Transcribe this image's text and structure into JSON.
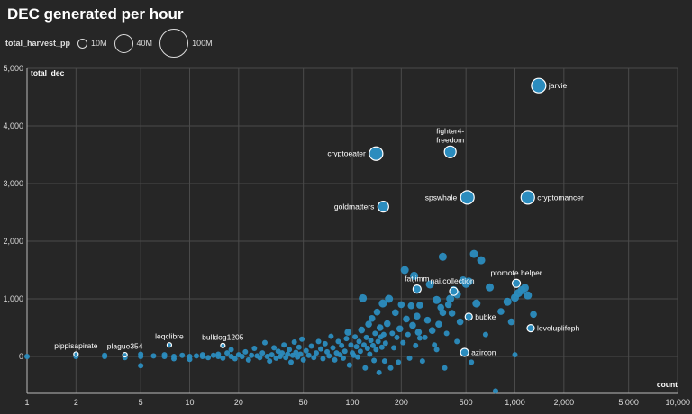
{
  "title": "DEC generated per hour",
  "legend": {
    "size_title": "total_harvest_pp",
    "items": [
      {
        "label": "10M",
        "value": 10000000
      },
      {
        "label": "40M",
        "value": 40000000
      },
      {
        "label": "100M",
        "value": 100000000
      }
    ]
  },
  "colors": {
    "background": "#262626",
    "point": "#2b8cbe",
    "highlight_stroke": "#ffffff",
    "grid": "#4a4a4a"
  },
  "chart_data": {
    "type": "scatter",
    "title": "DEC generated per hour",
    "xlabel": "count",
    "ylabel": "total_dec",
    "x_scale": "log",
    "xlim": [
      1,
      10000
    ],
    "ylim": [
      -650,
      5000
    ],
    "x_ticks": [
      1,
      2,
      5,
      10,
      20,
      50,
      100,
      200,
      500,
      1000,
      2000,
      5000,
      10000
    ],
    "x_tick_labels": [
      "1",
      "2",
      "5",
      "10",
      "20",
      "50",
      "100",
      "200",
      "500",
      "1,000",
      "2,000",
      "5,000",
      "10,000"
    ],
    "y_ticks": [
      0,
      1000,
      2000,
      3000,
      4000,
      5000
    ],
    "y_tick_labels": [
      "0",
      "1,000",
      "2,000",
      "3,000",
      "4,000",
      "5,000"
    ],
    "grid": true,
    "labeled_points": [
      {
        "name": "jarvie",
        "x": 1400,
        "y": 4700,
        "r": 8,
        "label_side": "right"
      },
      {
        "name": "fighter4-\nfreedom",
        "x": 400,
        "y": 3550,
        "r": 6.5,
        "label_side": "above"
      },
      {
        "name": "cryptoeater",
        "x": 140,
        "y": 3520,
        "r": 7.5,
        "label_side": "left"
      },
      {
        "name": "spswhale",
        "x": 510,
        "y": 2760,
        "r": 7.5,
        "label_side": "left"
      },
      {
        "name": "cryptomancer",
        "x": 1200,
        "y": 2760,
        "r": 7.5,
        "label_side": "right"
      },
      {
        "name": "goldmatters",
        "x": 155,
        "y": 2600,
        "r": 6,
        "label_side": "left"
      },
      {
        "name": "promote.helper",
        "x": 1020,
        "y": 1270,
        "r": 4.5,
        "label_side": "above"
      },
      {
        "name": "fatjimm",
        "x": 250,
        "y": 1170,
        "r": 4.5,
        "label_side": "above"
      },
      {
        "name": "nai.collection",
        "x": 420,
        "y": 1130,
        "r": 4.5,
        "label_side": "aboveright"
      },
      {
        "name": "bubke",
        "x": 520,
        "y": 690,
        "r": 4,
        "label_side": "right"
      },
      {
        "name": "leveluplifeph",
        "x": 1250,
        "y": 490,
        "r": 4,
        "label_side": "right"
      },
      {
        "name": "azircon",
        "x": 490,
        "y": 70,
        "r": 4.5,
        "label_side": "right"
      },
      {
        "name": "pippisapirate",
        "x": 2,
        "y": 40,
        "r": 2.5,
        "label_side": "above"
      },
      {
        "name": "plague354",
        "x": 4,
        "y": 30,
        "r": 2.5,
        "label_side": "above"
      },
      {
        "name": "leqclibre",
        "x": 7.5,
        "y": 200,
        "r": 2.5,
        "label_side": "above"
      },
      {
        "name": "bulldog1205",
        "x": 16,
        "y": 190,
        "r": 2.5,
        "label_side": "above"
      }
    ],
    "points": [
      [
        1,
        0
      ],
      [
        2,
        0
      ],
      [
        3,
        0
      ],
      [
        3,
        20
      ],
      [
        4,
        -20
      ],
      [
        5,
        0
      ],
      [
        5,
        40
      ],
      [
        5,
        -160
      ],
      [
        6,
        10
      ],
      [
        7,
        0
      ],
      [
        7,
        30
      ],
      [
        8,
        0
      ],
      [
        8,
        -40
      ],
      [
        9,
        20
      ],
      [
        10,
        0
      ],
      [
        10,
        -50
      ],
      [
        11,
        10
      ],
      [
        12,
        0
      ],
      [
        12,
        30
      ],
      [
        13,
        -20
      ],
      [
        14,
        20
      ],
      [
        15,
        0
      ],
      [
        15,
        40
      ],
      [
        16,
        -30
      ],
      [
        17,
        60
      ],
      [
        18,
        0
      ],
      [
        18,
        120
      ],
      [
        19,
        -40
      ],
      [
        20,
        30
      ],
      [
        21,
        0
      ],
      [
        22,
        80
      ],
      [
        23,
        -60
      ],
      [
        24,
        20
      ],
      [
        25,
        140
      ],
      [
        26,
        10
      ],
      [
        27,
        -20
      ],
      [
        28,
        60
      ],
      [
        29,
        240
      ],
      [
        30,
        0
      ],
      [
        31,
        -80
      ],
      [
        32,
        30
      ],
      [
        33,
        150
      ],
      [
        34,
        -30
      ],
      [
        35,
        90
      ],
      [
        36,
        0
      ],
      [
        37,
        60
      ],
      [
        38,
        200
      ],
      [
        39,
        -20
      ],
      [
        40,
        40
      ],
      [
        41,
        120
      ],
      [
        42,
        -100
      ],
      [
        43,
        20
      ],
      [
        44,
        250
      ],
      [
        45,
        70
      ],
      [
        46,
        -10
      ],
      [
        47,
        160
      ],
      [
        48,
        40
      ],
      [
        49,
        300
      ],
      [
        50,
        -60
      ],
      [
        52,
        100
      ],
      [
        54,
        20
      ],
      [
        56,
        180
      ],
      [
        58,
        -20
      ],
      [
        60,
        60
      ],
      [
        62,
        260
      ],
      [
        64,
        130
      ],
      [
        66,
        -40
      ],
      [
        68,
        220
      ],
      [
        70,
        80
      ],
      [
        72,
        10
      ],
      [
        74,
        350
      ],
      [
        76,
        150
      ],
      [
        78,
        -60
      ],
      [
        80,
        60
      ],
      [
        82,
        260
      ],
      [
        84,
        30
      ],
      [
        86,
        190
      ],
      [
        88,
        -30
      ],
      [
        90,
        90
      ],
      [
        92,
        310
      ],
      [
        94,
        420
      ],
      [
        96,
        -150
      ],
      [
        98,
        200
      ],
      [
        100,
        60
      ],
      [
        102,
        20
      ],
      [
        104,
        340
      ],
      [
        106,
        170
      ],
      [
        108,
        -10
      ],
      [
        110,
        260
      ],
      [
        112,
        90
      ],
      [
        114,
        460
      ],
      [
        116,
        1010
      ],
      [
        118,
        200
      ],
      [
        120,
        -200
      ],
      [
        122,
        330
      ],
      [
        124,
        140
      ],
      [
        126,
        560
      ],
      [
        128,
        40
      ],
      [
        130,
        280
      ],
      [
        132,
        660
      ],
      [
        134,
        190
      ],
      [
        136,
        -70
      ],
      [
        138,
        400
      ],
      [
        140,
        120
      ],
      [
        142,
        770
      ],
      [
        144,
        260
      ],
      [
        146,
        -280
      ],
      [
        148,
        500
      ],
      [
        150,
        340
      ],
      [
        152,
        160
      ],
      [
        154,
        920
      ],
      [
        156,
        380
      ],
      [
        158,
        -80
      ],
      [
        160,
        230
      ],
      [
        164,
        570
      ],
      [
        168,
        1000
      ],
      [
        172,
        -200
      ],
      [
        176,
        400
      ],
      [
        180,
        150
      ],
      [
        184,
        760
      ],
      [
        188,
        330
      ],
      [
        192,
        -100
      ],
      [
        196,
        480
      ],
      [
        200,
        900
      ],
      [
        205,
        240
      ],
      [
        210,
        1500
      ],
      [
        215,
        650
      ],
      [
        220,
        380
      ],
      [
        225,
        -30
      ],
      [
        230,
        880
      ],
      [
        235,
        540
      ],
      [
        240,
        1400
      ],
      [
        245,
        190
      ],
      [
        250,
        700
      ],
      [
        255,
        420
      ],
      [
        260,
        890
      ],
      [
        270,
        -80
      ],
      [
        280,
        330
      ],
      [
        290,
        630
      ],
      [
        300,
        1250
      ],
      [
        310,
        450
      ],
      [
        320,
        200
      ],
      [
        330,
        980
      ],
      [
        340,
        560
      ],
      [
        350,
        850
      ],
      [
        360,
        760
      ],
      [
        370,
        -200
      ],
      [
        380,
        400
      ],
      [
        390,
        900
      ],
      [
        400,
        1000
      ],
      [
        410,
        750
      ],
      [
        420,
        1150
      ],
      [
        440,
        1080
      ],
      [
        460,
        600
      ],
      [
        480,
        1320
      ],
      [
        500,
        1260
      ],
      [
        520,
        1300
      ],
      [
        540,
        -100
      ],
      [
        560,
        1780
      ],
      [
        580,
        920
      ],
      [
        620,
        1670
      ],
      [
        660,
        380
      ],
      [
        700,
        1200
      ],
      [
        760,
        -600
      ],
      [
        820,
        780
      ],
      [
        900,
        950
      ],
      [
        950,
        600
      ],
      [
        1000,
        1020
      ],
      [
        1050,
        1100
      ],
      [
        1100,
        1150
      ],
      [
        1150,
        1190
      ],
      [
        1200,
        1060
      ],
      [
        1300,
        730
      ],
      [
        1000,
        30
      ],
      [
        260,
        320
      ],
      [
        330,
        120
      ],
      [
        440,
        260
      ],
      [
        360,
        1730
      ]
    ]
  }
}
